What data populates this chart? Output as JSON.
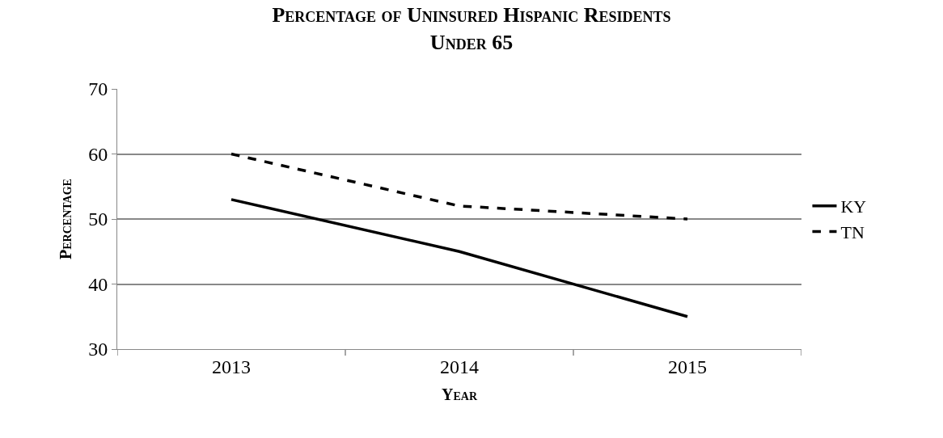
{
  "chart_data": {
    "type": "line",
    "title": "Percentage of Uninsured Hispanic Residents\nUnder 65",
    "xlabel": "Year",
    "ylabel": "Percentage",
    "categories": [
      "2013",
      "2014",
      "2015"
    ],
    "series": [
      {
        "name": "KY",
        "color": "#000000",
        "values": [
          53,
          45,
          35
        ],
        "line_style": "solid"
      },
      {
        "name": "TN",
        "color": "#000000",
        "values": [
          60,
          52,
          50
        ],
        "line_style": "dashed"
      }
    ],
    "ylim": [
      30,
      70
    ],
    "yticks": [
      30,
      40,
      50,
      60,
      70
    ],
    "grid": "y",
    "legend": "right",
    "marker": "none"
  }
}
